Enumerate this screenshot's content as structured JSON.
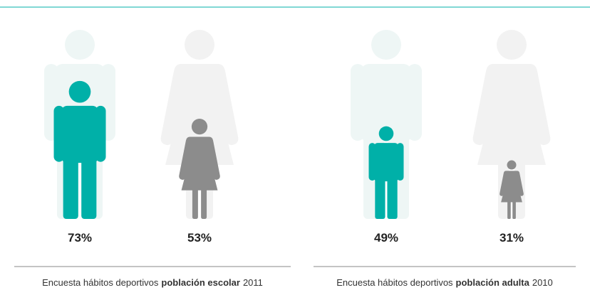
{
  "chart_data": [
    {
      "type": "pictogram",
      "values": [
        73,
        53
      ],
      "value_labels": [
        "73%",
        "53%"
      ],
      "colors": [
        "#00b0a8",
        "#8c8c8c"
      ],
      "ylim": [
        0,
        100
      ],
      "caption": [
        "Encuesta hábitos deportivos",
        "población escolar",
        "2011"
      ]
    },
    {
      "type": "pictogram",
      "values": [
        49,
        31
      ],
      "value_labels": [
        "49%",
        "31%"
      ],
      "colors": [
        "#00b0a8",
        "#8c8c8c"
      ],
      "ylim": [
        0,
        100
      ],
      "caption": [
        "Encuesta hábitos deportivos",
        "población adulta",
        "2010"
      ]
    }
  ]
}
